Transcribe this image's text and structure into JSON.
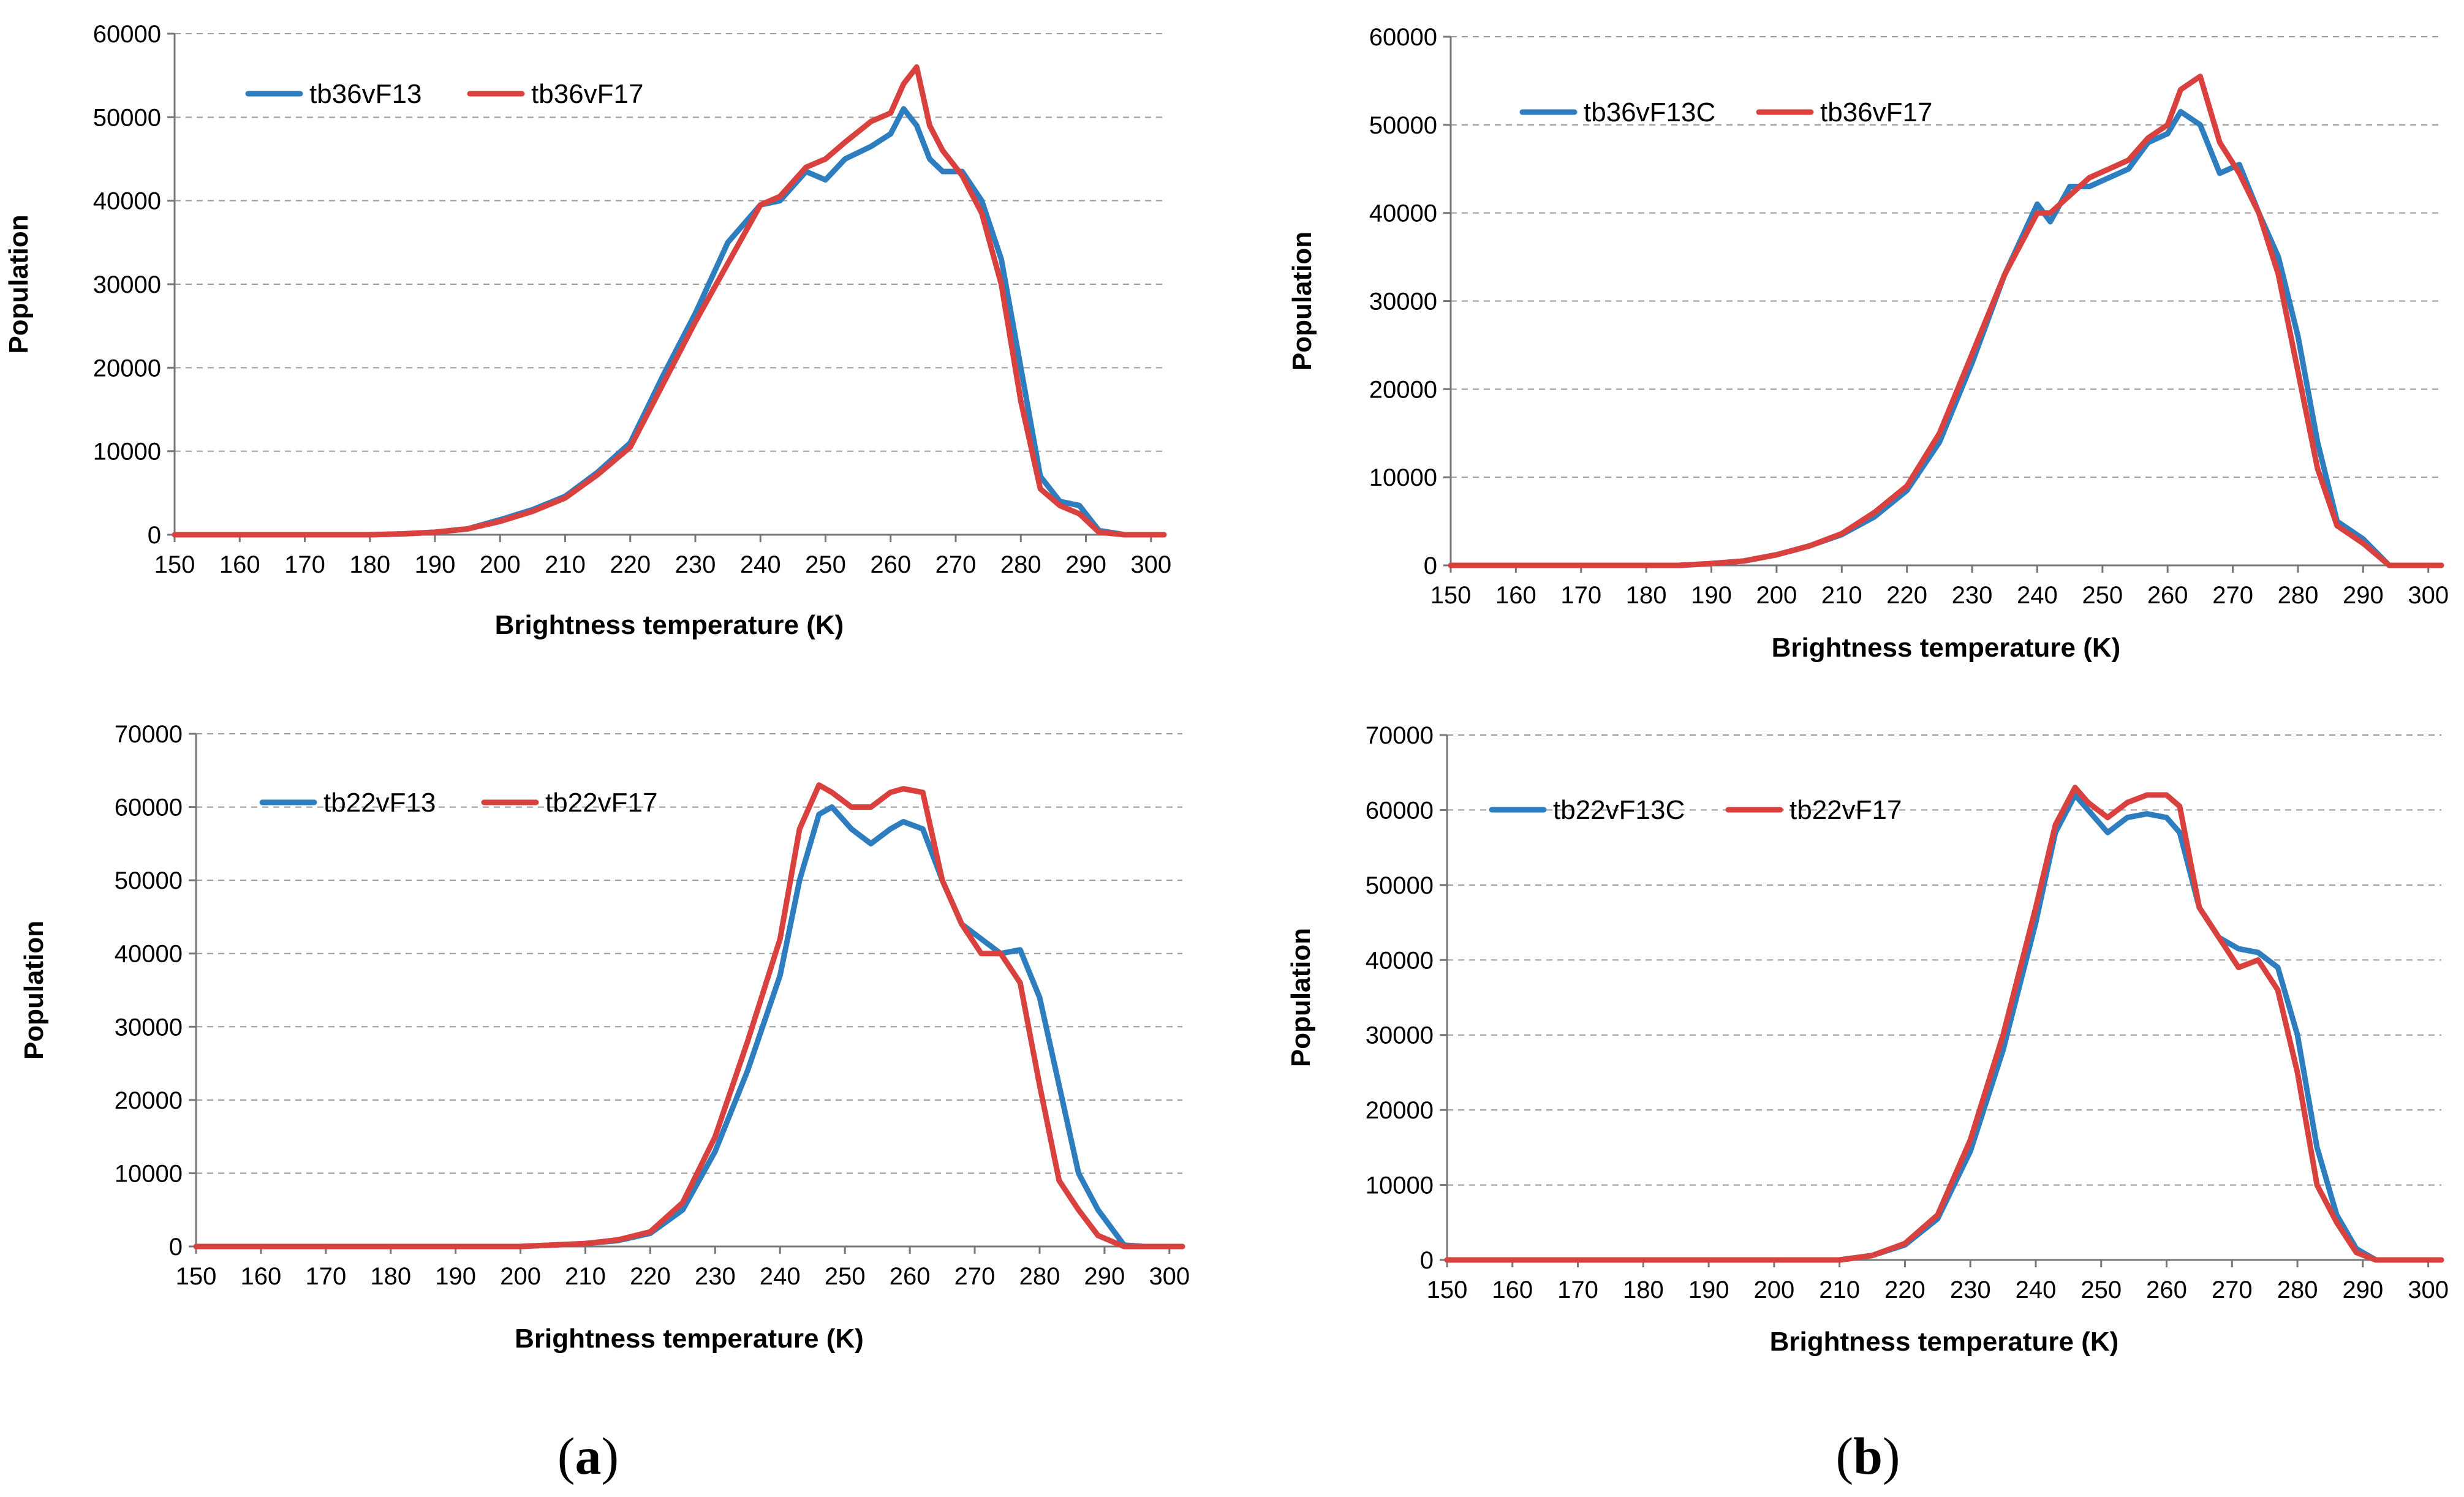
{
  "colors": {
    "blue": "#2e7ebf",
    "red": "#d9413f"
  },
  "panel_labels": {
    "a": "a",
    "b": "b",
    "open": "(",
    "close": ")"
  },
  "chart_data": [
    {
      "type": "line",
      "panel": "a-top",
      "xlabel": "Brightness temperature (K)",
      "ylabel": "Population",
      "xlim": [
        150,
        302
      ],
      "ylim": [
        0,
        60000
      ],
      "xticks": [
        150,
        160,
        170,
        180,
        190,
        200,
        210,
        220,
        230,
        240,
        250,
        260,
        270,
        280,
        290,
        300
      ],
      "yticks": [
        0,
        10000,
        20000,
        30000,
        40000,
        50000,
        60000
      ],
      "grid": true,
      "legend_position": "top-left",
      "series": [
        {
          "name": "tb36vF13",
          "color": "blue",
          "x": [
            150,
            180,
            185,
            190,
            195,
            200,
            205,
            210,
            215,
            220,
            225,
            230,
            235,
            240,
            243,
            247,
            250,
            253,
            257,
            260,
            262,
            264,
            266,
            268,
            271,
            274,
            277,
            280,
            283,
            286,
            289,
            292,
            296,
            302
          ],
          "y": [
            0,
            0,
            100,
            300,
            700,
            1800,
            3000,
            4600,
            7500,
            11000,
            19000,
            26500,
            35000,
            39500,
            40000,
            43500,
            42500,
            45000,
            46500,
            48000,
            51000,
            49000,
            45000,
            43500,
            43500,
            40000,
            33000,
            20000,
            7000,
            4000,
            3500,
            500,
            0,
            0
          ]
        },
        {
          "name": "tb36vF17",
          "color": "red",
          "x": [
            150,
            180,
            185,
            190,
            195,
            200,
            205,
            210,
            215,
            220,
            225,
            230,
            235,
            240,
            243,
            247,
            250,
            253,
            257,
            260,
            262,
            264,
            266,
            268,
            271,
            274,
            277,
            280,
            283,
            286,
            289,
            292,
            296,
            302
          ],
          "y": [
            0,
            0,
            100,
            300,
            700,
            1600,
            2800,
            4400,
            7200,
            10500,
            18000,
            25500,
            32500,
            39500,
            40500,
            44000,
            45000,
            47000,
            49500,
            50500,
            54000,
            56000,
            49000,
            46000,
            43000,
            38500,
            30000,
            16000,
            5500,
            3500,
            2500,
            300,
            0,
            0
          ]
        }
      ]
    },
    {
      "type": "line",
      "panel": "b-top",
      "xlabel": "Brightness temperature (K)",
      "ylabel": "Population",
      "xlim": [
        150,
        302
      ],
      "ylim": [
        0,
        60000
      ],
      "xticks": [
        150,
        160,
        170,
        180,
        190,
        200,
        210,
        220,
        230,
        240,
        250,
        260,
        270,
        280,
        290,
        300
      ],
      "yticks": [
        0,
        10000,
        20000,
        30000,
        40000,
        50000,
        60000
      ],
      "grid": true,
      "legend_position": "top-left",
      "series": [
        {
          "name": "tb36vF13C",
          "color": "blue",
          "x": [
            150,
            185,
            190,
            195,
            200,
            205,
            210,
            215,
            220,
            225,
            230,
            235,
            240,
            242,
            245,
            248,
            251,
            254,
            257,
            260,
            262,
            265,
            268,
            271,
            274,
            277,
            280,
            283,
            286,
            290,
            294,
            302
          ],
          "y": [
            0,
            0,
            200,
            500,
            1200,
            2200,
            3500,
            5500,
            8500,
            14000,
            23000,
            33000,
            41000,
            39000,
            43000,
            43000,
            44000,
            45000,
            48000,
            49000,
            51500,
            50000,
            44500,
            45500,
            40000,
            35000,
            26000,
            14000,
            5000,
            3000,
            0,
            0
          ]
        },
        {
          "name": "tb36vF17",
          "color": "red",
          "x": [
            150,
            185,
            190,
            195,
            200,
            205,
            210,
            215,
            220,
            225,
            230,
            235,
            240,
            242,
            245,
            248,
            251,
            254,
            257,
            260,
            262,
            265,
            268,
            271,
            274,
            277,
            280,
            283,
            286,
            290,
            294,
            302
          ],
          "y": [
            0,
            0,
            200,
            500,
            1200,
            2200,
            3600,
            6000,
            9000,
            15000,
            24000,
            33000,
            40000,
            40000,
            42000,
            44000,
            45000,
            46000,
            48500,
            50000,
            54000,
            55500,
            48000,
            44500,
            40000,
            33000,
            22000,
            11000,
            4500,
            2500,
            0,
            0
          ]
        }
      ]
    },
    {
      "type": "line",
      "panel": "a-bottom",
      "xlabel": "Brightness temperature (K)",
      "ylabel": "Population",
      "xlim": [
        150,
        302
      ],
      "ylim": [
        0,
        70000
      ],
      "xticks": [
        150,
        160,
        170,
        180,
        190,
        200,
        210,
        220,
        230,
        240,
        250,
        260,
        270,
        280,
        290,
        300
      ],
      "yticks": [
        0,
        10000,
        20000,
        30000,
        40000,
        50000,
        60000,
        70000
      ],
      "grid": true,
      "legend_position": "top-left",
      "series": [
        {
          "name": "tb22vF13",
          "color": "blue",
          "x": [
            150,
            200,
            205,
            210,
            215,
            220,
            225,
            230,
            235,
            240,
            243,
            246,
            248,
            251,
            254,
            257,
            259,
            262,
            265,
            268,
            271,
            274,
            277,
            280,
            283,
            286,
            289,
            293,
            296,
            302
          ],
          "y": [
            0,
            0,
            200,
            400,
            800,
            1800,
            5000,
            13000,
            24000,
            37000,
            50000,
            59000,
            60000,
            57000,
            55000,
            57000,
            58000,
            57000,
            50000,
            44000,
            42000,
            40000,
            40500,
            34000,
            22000,
            10000,
            5000,
            200,
            0,
            0
          ]
        },
        {
          "name": "tb22vF17",
          "color": "red",
          "x": [
            150,
            200,
            205,
            210,
            215,
            220,
            225,
            230,
            235,
            240,
            243,
            246,
            248,
            251,
            254,
            257,
            259,
            262,
            265,
            268,
            271,
            274,
            277,
            280,
            283,
            286,
            289,
            293,
            296,
            302
          ],
          "y": [
            0,
            0,
            200,
            400,
            900,
            2000,
            6000,
            15000,
            28000,
            42000,
            57000,
            63000,
            62000,
            60000,
            60000,
            62000,
            62500,
            62000,
            50000,
            44000,
            40000,
            40000,
            36000,
            22000,
            9000,
            5000,
            1500,
            0,
            0,
            0
          ]
        }
      ]
    },
    {
      "type": "line",
      "panel": "b-bottom",
      "xlabel": "Brightness temperature (K)",
      "ylabel": "Population",
      "xlim": [
        150,
        302
      ],
      "ylim": [
        0,
        70000
      ],
      "xticks": [
        150,
        160,
        170,
        180,
        190,
        200,
        210,
        220,
        230,
        240,
        250,
        260,
        270,
        280,
        290,
        300
      ],
      "yticks": [
        0,
        10000,
        20000,
        30000,
        40000,
        50000,
        60000,
        70000
      ],
      "grid": true,
      "legend_position": "top-left",
      "series": [
        {
          "name": "tb22vF13C",
          "color": "blue",
          "x": [
            150,
            210,
            215,
            220,
            225,
            230,
            235,
            240,
            243,
            246,
            248,
            251,
            254,
            257,
            260,
            262,
            265,
            268,
            271,
            274,
            277,
            280,
            283,
            286,
            289,
            292,
            296,
            302
          ],
          "y": [
            0,
            0,
            600,
            2000,
            5500,
            14500,
            28000,
            45000,
            57000,
            62000,
            60000,
            57000,
            59000,
            59500,
            59000,
            57000,
            47000,
            43000,
            41500,
            41000,
            39000,
            30000,
            15000,
            6000,
            1500,
            0,
            0,
            0
          ]
        },
        {
          "name": "tb22vF17",
          "color": "red",
          "x": [
            150,
            210,
            215,
            220,
            225,
            230,
            235,
            240,
            243,
            246,
            248,
            251,
            254,
            257,
            260,
            262,
            265,
            268,
            271,
            274,
            277,
            280,
            283,
            286,
            289,
            292,
            296,
            302
          ],
          "y": [
            0,
            0,
            600,
            2200,
            6000,
            16000,
            30000,
            47000,
            58000,
            63000,
            61000,
            59000,
            61000,
            62000,
            62000,
            60500,
            47000,
            43000,
            39000,
            40000,
            36000,
            25000,
            10000,
            5000,
            1000,
            0,
            0,
            0
          ]
        }
      ]
    }
  ]
}
